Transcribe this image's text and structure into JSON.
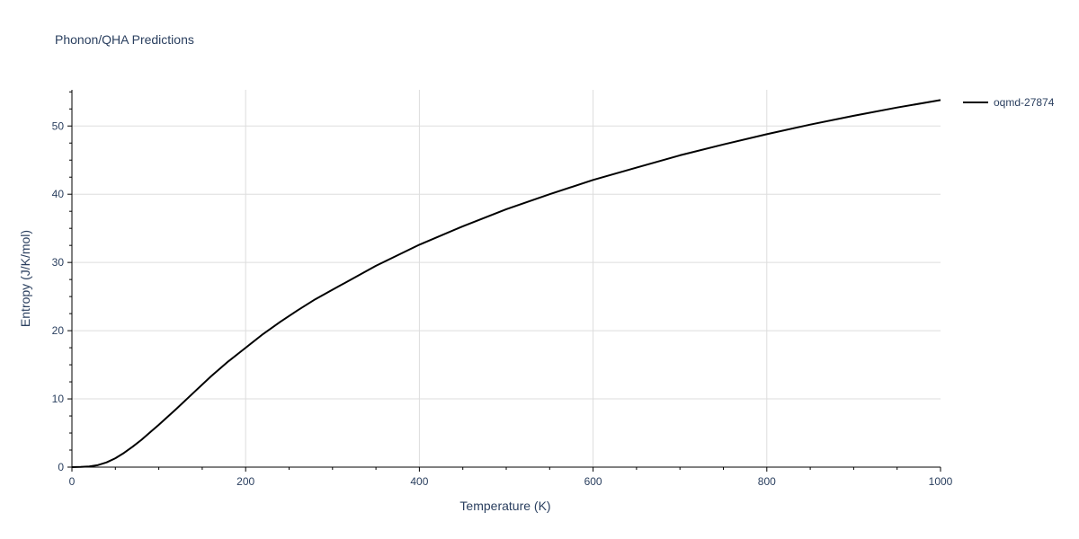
{
  "title": "Phonon/QHA Predictions",
  "chart_data": {
    "type": "line",
    "title": "Phonon/QHA Predictions",
    "xlabel": "Temperature (K)",
    "ylabel": "Entropy (J/K/mol)",
    "xlim": [
      0,
      1000
    ],
    "ylim": [
      0,
      55.3
    ],
    "xticks": [
      0,
      200,
      400,
      600,
      800,
      1000
    ],
    "yticks": [
      0,
      10,
      20,
      30,
      40,
      50
    ],
    "grid": true,
    "legend_position": "top-right",
    "series": [
      {
        "name": "oqmd-27874",
        "color": "#000000",
        "x": [
          0,
          10,
          20,
          30,
          40,
          50,
          60,
          70,
          80,
          90,
          100,
          120,
          140,
          160,
          180,
          200,
          220,
          240,
          260,
          280,
          300,
          350,
          400,
          450,
          500,
          550,
          600,
          650,
          700,
          750,
          800,
          850,
          900,
          950,
          1000
        ],
        "y": [
          0,
          0.02,
          0.1,
          0.3,
          0.7,
          1.3,
          2.1,
          3.0,
          4.0,
          5.1,
          6.2,
          8.5,
          10.9,
          13.3,
          15.5,
          17.5,
          19.5,
          21.3,
          23.0,
          24.6,
          26.0,
          29.5,
          32.6,
          35.3,
          37.8,
          40.0,
          42.1,
          43.9,
          45.7,
          47.3,
          48.8,
          50.2,
          51.5,
          52.7,
          53.8
        ]
      }
    ]
  }
}
